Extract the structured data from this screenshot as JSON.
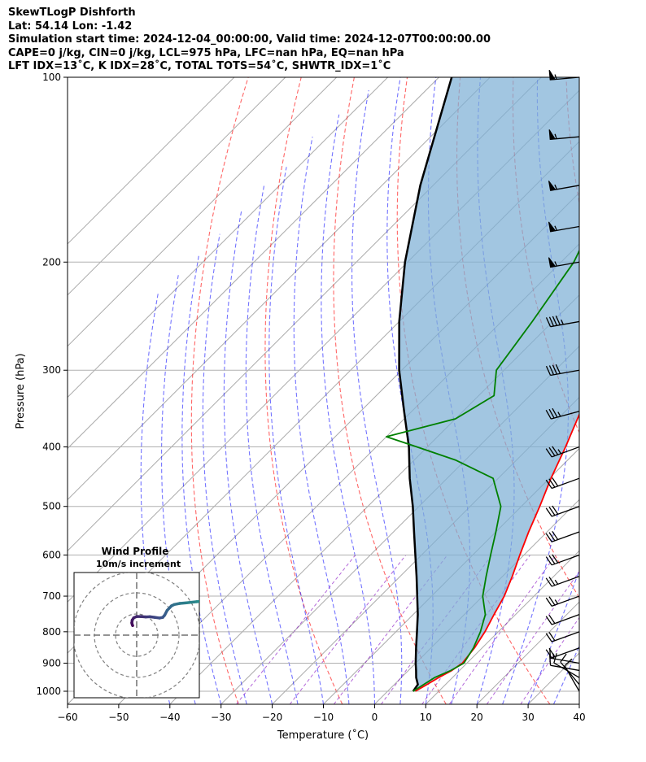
{
  "header": {
    "title": "SkewTLogP Dishforth",
    "location": "Lat: 54.14   Lon: -1.42",
    "times": "Simulation start time: 2024-12-04_00:00:00, Valid time: 2024-12-07T00:00:00.00",
    "params1": "CAPE=0 j/kg, CIN=0 j/kg, LCL=975 hPa, LFC=nan hPa, EQ=nan hPa",
    "params2": "LFT IDX=13˚C, K IDX=28˚C, TOTAL TOTS=54˚C, SHWTR_IDX=1˚C"
  },
  "chart_data": {
    "type": "line",
    "title": "SkewTLogP Dishforth",
    "xlabel": "Temperature (˚C)",
    "ylabel": "Pressure (hPa)",
    "xlim": [
      -60,
      40
    ],
    "ylim": [
      1050,
      100
    ],
    "x_ticks": [
      -60,
      -50,
      -40,
      -30,
      -20,
      -10,
      0,
      10,
      20,
      30,
      40
    ],
    "y_ticks": [
      100,
      200,
      300,
      400,
      500,
      600,
      700,
      800,
      900,
      1000
    ],
    "x_tick_labels": [
      "−60",
      "−50",
      "−40",
      "−30",
      "−20",
      "−10",
      "0",
      "10",
      "20",
      "30",
      "40"
    ],
    "y_tick_labels": [
      "100",
      "200",
      "300",
      "400",
      "500",
      "600",
      "700",
      "800",
      "900",
      "1000"
    ],
    "series": [
      {
        "name": "Temperature",
        "color": "#ff0000",
        "pressure": [
          1000,
          980,
          950,
          925,
          900,
          850,
          800,
          750,
          700,
          650,
          600,
          550,
          500,
          450,
          400,
          350,
          300,
          250,
          200,
          175,
          150,
          125,
          100
        ],
        "values": [
          5.4,
          6.2,
          7.3,
          8.5,
          9.1,
          8.5,
          7.4,
          5.8,
          4.2,
          1.9,
          -0.8,
          -3.6,
          -6.4,
          -9.7,
          -13.0,
          -17.0,
          -21.5,
          -26.8,
          -32.6,
          -35.5,
          -40.5,
          -44.2,
          -48.2
        ]
      },
      {
        "name": "Dewpoint",
        "color": "#008000",
        "pressure": [
          1000,
          980,
          950,
          925,
          900,
          850,
          800,
          750,
          700,
          650,
          600,
          550,
          500,
          450,
          420,
          400,
          385,
          360,
          330,
          300,
          250,
          200,
          160,
          150,
          125,
          100
        ],
        "values": [
          5.0,
          5.6,
          6.5,
          8.3,
          9.4,
          8.3,
          6.5,
          4.1,
          0.0,
          -3.2,
          -6.5,
          -10.0,
          -14.0,
          -21.0,
          -32.0,
          -42.0,
          -50.0,
          -40.0,
          -37.0,
          -41.5,
          -44.0,
          -47.5,
          -53.5,
          -55.0,
          -56.0,
          -59.8
        ]
      },
      {
        "name": "Parcel profile",
        "color": "#000000",
        "pressure": [
          1000,
          975,
          950,
          925,
          900,
          850,
          800,
          750,
          700,
          650,
          600,
          550,
          500,
          450,
          400,
          350,
          300,
          250,
          200,
          150,
          100
        ],
        "values": [
          5.0,
          4.6,
          2.9,
          1.5,
          0.0,
          -2.9,
          -5.9,
          -9.1,
          -12.8,
          -16.8,
          -21.2,
          -26.0,
          -31.2,
          -37.3,
          -43.6,
          -51.5,
          -60.5,
          -70.0,
          -80.5,
          -92.5,
          -107.5
        ]
      }
    ],
    "wind_barbs": {
      "pressure": [
        1000,
        975,
        950,
        925,
        900,
        850,
        800,
        750,
        700,
        650,
        600,
        550,
        500,
        450,
        400,
        350,
        300,
        250,
        200,
        175,
        150,
        125,
        100
      ],
      "speed_kt": [
        10,
        10,
        10,
        10,
        15,
        20,
        20,
        20,
        25,
        25,
        30,
        30,
        30,
        30,
        35,
        35,
        40,
        45,
        55,
        55,
        55,
        55,
        55
      ],
      "direction_deg": [
        330,
        320,
        300,
        280,
        280,
        250,
        250,
        250,
        250,
        250,
        250,
        250,
        250,
        250,
        250,
        255,
        260,
        260,
        260,
        260,
        260,
        265,
        265
      ]
    },
    "hodograph": {
      "title": "Wind Profile",
      "subtitle": "10m/s increment",
      "u": [
        -1.9,
        -2.1,
        -2.3,
        -2.1,
        -1.4,
        0.0,
        2.0,
        4.3,
        6.2,
        8.5,
        10.8,
        12.3,
        13.2,
        14.4,
        16.4,
        17.8,
        20.4,
        23.6,
        28.4,
        32.0,
        36.5,
        40.0,
        44.0
      ],
      "v": [
        4.5,
        5.0,
        5.8,
        7.1,
        8.2,
        8.8,
        8.8,
        8.6,
        8.7,
        8.4,
        8.1,
        8.4,
        9.4,
        11.7,
        13.8,
        14.5,
        15.0,
        15.3,
        15.8,
        16.1,
        16.5,
        17.0,
        17.8
      ]
    },
    "legend": "none"
  }
}
